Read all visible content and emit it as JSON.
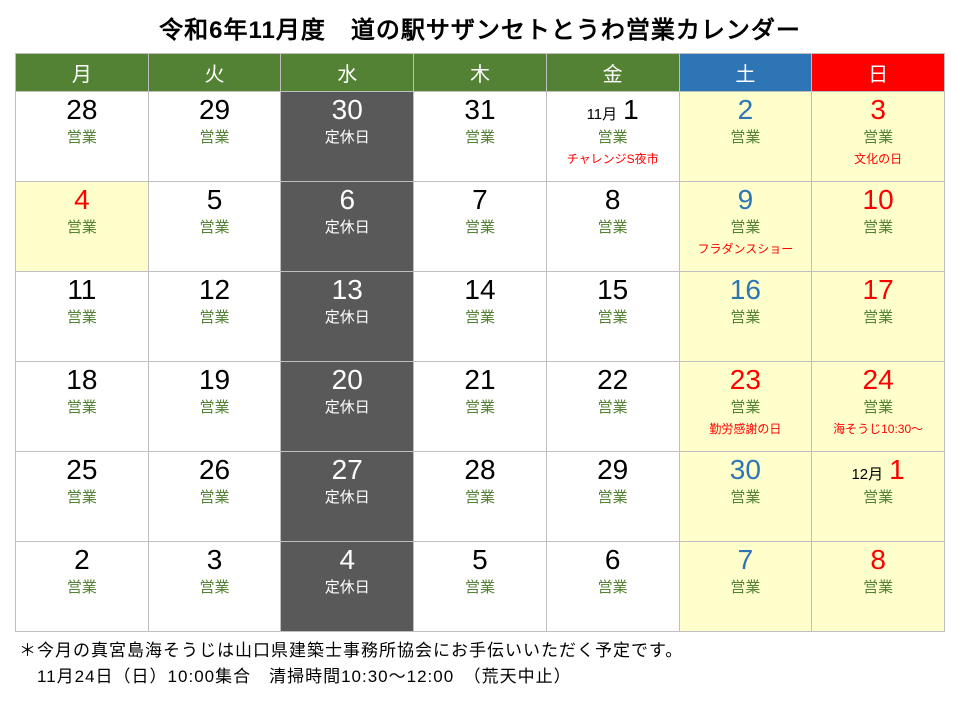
{
  "title": "令和6年11月度　道の駅サザンセトとうわ営業カレンダー",
  "colors": {
    "hdr_weekday": "#548235",
    "hdr_sat": "#2e75b6",
    "hdr_sun": "#ff0000",
    "cell_default_bg": "#ffffff",
    "cell_yellow_bg": "#ffffcc",
    "cell_dark_bg": "#595959",
    "border": "#bfbfbf",
    "text_black": "#000000",
    "text_white": "#ffffff",
    "text_green": "#548235",
    "text_blue": "#2e75b6",
    "text_red": "#ff0000"
  },
  "headers": [
    {
      "label": "月",
      "bg": "#548235"
    },
    {
      "label": "火",
      "bg": "#548235"
    },
    {
      "label": "水",
      "bg": "#548235"
    },
    {
      "label": "木",
      "bg": "#548235"
    },
    {
      "label": "金",
      "bg": "#548235"
    },
    {
      "label": "土",
      "bg": "#2e75b6"
    },
    {
      "label": "日",
      "bg": "#ff0000"
    }
  ],
  "rows": [
    [
      {
        "day": "28",
        "day_color": "#000000",
        "status": "営業",
        "status_color": "#548235",
        "bg": "#ffffff"
      },
      {
        "day": "29",
        "day_color": "#000000",
        "status": "営業",
        "status_color": "#548235",
        "bg": "#ffffff"
      },
      {
        "day": "30",
        "day_color": "#ffffff",
        "status": "定休日",
        "status_color": "#ffffff",
        "bg": "#595959"
      },
      {
        "day": "31",
        "day_color": "#000000",
        "status": "営業",
        "status_color": "#548235",
        "bg": "#ffffff"
      },
      {
        "day": "1",
        "month_label": "11月",
        "day_color": "#000000",
        "status": "営業",
        "status_color": "#548235",
        "note": "チャレンジS夜市",
        "note_color": "#ff0000",
        "bg": "#ffffff"
      },
      {
        "day": "2",
        "day_color": "#2e75b6",
        "status": "営業",
        "status_color": "#548235",
        "bg": "#ffffcc"
      },
      {
        "day": "3",
        "day_color": "#ff0000",
        "status": "営業",
        "status_color": "#548235",
        "note": "文化の日",
        "note_color": "#ff0000",
        "bg": "#ffffcc"
      }
    ],
    [
      {
        "day": "4",
        "day_color": "#ff0000",
        "status": "営業",
        "status_color": "#548235",
        "bg": "#ffffcc"
      },
      {
        "day": "5",
        "day_color": "#000000",
        "status": "営業",
        "status_color": "#548235",
        "bg": "#ffffff"
      },
      {
        "day": "6",
        "day_color": "#ffffff",
        "status": "定休日",
        "status_color": "#ffffff",
        "bg": "#595959"
      },
      {
        "day": "7",
        "day_color": "#000000",
        "status": "営業",
        "status_color": "#548235",
        "bg": "#ffffff"
      },
      {
        "day": "8",
        "day_color": "#000000",
        "status": "営業",
        "status_color": "#548235",
        "bg": "#ffffff"
      },
      {
        "day": "9",
        "day_color": "#2e75b6",
        "status": "営業",
        "status_color": "#548235",
        "note": "フラダンスショー",
        "note_color": "#ff0000",
        "bg": "#ffffcc"
      },
      {
        "day": "10",
        "day_color": "#ff0000",
        "status": "営業",
        "status_color": "#548235",
        "bg": "#ffffcc"
      }
    ],
    [
      {
        "day": "11",
        "day_color": "#000000",
        "status": "営業",
        "status_color": "#548235",
        "bg": "#ffffff"
      },
      {
        "day": "12",
        "day_color": "#000000",
        "status": "営業",
        "status_color": "#548235",
        "bg": "#ffffff"
      },
      {
        "day": "13",
        "day_color": "#ffffff",
        "status": "定休日",
        "status_color": "#ffffff",
        "bg": "#595959"
      },
      {
        "day": "14",
        "day_color": "#000000",
        "status": "営業",
        "status_color": "#548235",
        "bg": "#ffffff"
      },
      {
        "day": "15",
        "day_color": "#000000",
        "status": "営業",
        "status_color": "#548235",
        "bg": "#ffffff"
      },
      {
        "day": "16",
        "day_color": "#2e75b6",
        "status": "営業",
        "status_color": "#548235",
        "bg": "#ffffcc"
      },
      {
        "day": "17",
        "day_color": "#ff0000",
        "status": "営業",
        "status_color": "#548235",
        "bg": "#ffffcc"
      }
    ],
    [
      {
        "day": "18",
        "day_color": "#000000",
        "status": "営業",
        "status_color": "#548235",
        "bg": "#ffffff"
      },
      {
        "day": "19",
        "day_color": "#000000",
        "status": "営業",
        "status_color": "#548235",
        "bg": "#ffffff"
      },
      {
        "day": "20",
        "day_color": "#ffffff",
        "status": "定休日",
        "status_color": "#ffffff",
        "bg": "#595959"
      },
      {
        "day": "21",
        "day_color": "#000000",
        "status": "営業",
        "status_color": "#548235",
        "bg": "#ffffff"
      },
      {
        "day": "22",
        "day_color": "#000000",
        "status": "営業",
        "status_color": "#548235",
        "bg": "#ffffff"
      },
      {
        "day": "23",
        "day_color": "#ff0000",
        "status": "営業",
        "status_color": "#548235",
        "note": "勤労感謝の日",
        "note_color": "#ff0000",
        "bg": "#ffffcc"
      },
      {
        "day": "24",
        "day_color": "#ff0000",
        "status": "営業",
        "status_color": "#548235",
        "note": "海そうじ10:30～",
        "note_color": "#ff0000",
        "bg": "#ffffcc"
      }
    ],
    [
      {
        "day": "25",
        "day_color": "#000000",
        "status": "営業",
        "status_color": "#548235",
        "bg": "#ffffff"
      },
      {
        "day": "26",
        "day_color": "#000000",
        "status": "営業",
        "status_color": "#548235",
        "bg": "#ffffff"
      },
      {
        "day": "27",
        "day_color": "#ffffff",
        "status": "定休日",
        "status_color": "#ffffff",
        "bg": "#595959"
      },
      {
        "day": "28",
        "day_color": "#000000",
        "status": "営業",
        "status_color": "#548235",
        "bg": "#ffffff"
      },
      {
        "day": "29",
        "day_color": "#000000",
        "status": "営業",
        "status_color": "#548235",
        "bg": "#ffffff"
      },
      {
        "day": "30",
        "day_color": "#2e75b6",
        "status": "営業",
        "status_color": "#548235",
        "bg": "#ffffcc"
      },
      {
        "day": "1",
        "month_label": "12月",
        "day_color": "#ff0000",
        "status": "営業",
        "status_color": "#548235",
        "bg": "#ffffcc"
      }
    ],
    [
      {
        "day": "2",
        "day_color": "#000000",
        "status": "営業",
        "status_color": "#548235",
        "bg": "#ffffff"
      },
      {
        "day": "3",
        "day_color": "#000000",
        "status": "営業",
        "status_color": "#548235",
        "bg": "#ffffff"
      },
      {
        "day": "4",
        "day_color": "#ffffff",
        "status": "定休日",
        "status_color": "#ffffff",
        "bg": "#595959"
      },
      {
        "day": "5",
        "day_color": "#000000",
        "status": "営業",
        "status_color": "#548235",
        "bg": "#ffffff"
      },
      {
        "day": "6",
        "day_color": "#000000",
        "status": "営業",
        "status_color": "#548235",
        "bg": "#ffffff"
      },
      {
        "day": "7",
        "day_color": "#2e75b6",
        "status": "営業",
        "status_color": "#548235",
        "bg": "#ffffcc"
      },
      {
        "day": "8",
        "day_color": "#ff0000",
        "status": "営業",
        "status_color": "#548235",
        "bg": "#ffffcc"
      }
    ]
  ],
  "footer_line1": "＊今月の真宮島海そうじは山口県建築士事務所協会にお手伝いいただく予定です。",
  "footer_line2": "　11月24日（日）10:00集合　清掃時間10:30～12:00　（荒天中止）"
}
